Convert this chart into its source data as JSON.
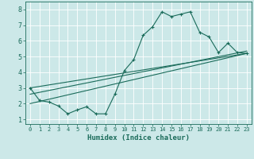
{
  "xlabel": "Humidex (Indice chaleur)",
  "bg_color": "#cce8e8",
  "grid_color": "#ffffff",
  "line_color": "#1a6b5a",
  "xlim": [
    -0.5,
    23.5
  ],
  "ylim": [
    0.7,
    8.5
  ],
  "xticks": [
    0,
    1,
    2,
    3,
    4,
    5,
    6,
    7,
    8,
    9,
    10,
    11,
    12,
    13,
    14,
    15,
    16,
    17,
    18,
    19,
    20,
    21,
    22,
    23
  ],
  "yticks": [
    1,
    2,
    3,
    4,
    5,
    6,
    7,
    8
  ],
  "main_x": [
    0,
    1,
    2,
    3,
    4,
    5,
    6,
    7,
    8,
    9,
    10,
    11,
    12,
    13,
    14,
    15,
    16,
    17,
    18,
    19,
    20,
    21,
    22,
    23
  ],
  "main_y": [
    3.0,
    2.2,
    2.1,
    1.85,
    1.35,
    1.6,
    1.8,
    1.35,
    1.35,
    2.6,
    4.1,
    4.8,
    6.35,
    6.9,
    7.85,
    7.55,
    7.7,
    7.85,
    6.55,
    6.25,
    5.25,
    5.85,
    5.25,
    5.2
  ],
  "line1_x": [
    0,
    23
  ],
  "line1_y": [
    2.6,
    5.35
  ],
  "line2_x": [
    0,
    23
  ],
  "line2_y": [
    3.0,
    5.2
  ],
  "line3_x": [
    0,
    23
  ],
  "line3_y": [
    2.0,
    5.2
  ]
}
